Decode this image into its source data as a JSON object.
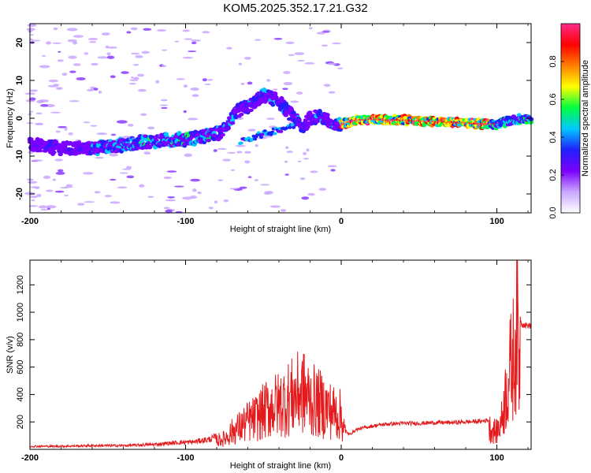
{
  "title": "KOM5.2025.352.17.21.G32",
  "chart_data": [
    {
      "type": "heatmap",
      "xlabel": "Height of straight line (km)",
      "ylabel": "Frequency (Hz)",
      "xlim": [
        -200,
        122
      ],
      "ylim": [
        -25,
        25
      ],
      "x_ticks": [
        -200,
        -100,
        0,
        100
      ],
      "y_ticks": [
        -20,
        -10,
        0,
        10,
        20
      ],
      "x_tick_labels": [
        "-200",
        "-100",
        "0",
        "100"
      ],
      "y_tick_labels": [
        "-20",
        "-10",
        "0",
        "10",
        "20"
      ],
      "colorbar": {
        "label": "Normalized spectral amplitude",
        "range": [
          0.0,
          1.0
        ],
        "ticks": [
          0.0,
          0.2,
          0.4,
          0.6,
          0.8
        ],
        "tick_labels": [
          "0.0",
          "0.2",
          "0.4",
          "0.6",
          "0.8"
        ],
        "colormap": [
          "#ffffff",
          "#c9a6ff",
          "#7b00ff",
          "#2020ff",
          "#00c8ff",
          "#00ff40",
          "#ffff00",
          "#ff7f00",
          "#ff0000",
          "#ff2a8a"
        ]
      },
      "ridge": {
        "x": [
          -200,
          -180,
          -160,
          -150,
          -140,
          -120,
          -100,
          -90,
          -85,
          -78,
          -72,
          -66,
          -60,
          -55,
          -50,
          -45,
          -40,
          -35,
          -30,
          -25,
          -20,
          -15,
          -10,
          -5,
          0,
          10,
          20,
          30,
          40,
          50,
          60,
          70,
          80,
          90,
          100,
          105,
          110,
          115,
          122
        ],
        "y": [
          -7,
          -8,
          -8,
          -7.5,
          -7,
          -6,
          -5.5,
          -5,
          -4.5,
          -4,
          -1,
          2,
          3,
          4.5,
          6,
          5.5,
          4.5,
          2,
          0,
          -2.5,
          0,
          0.5,
          0,
          -2.5,
          -1.5,
          -0.5,
          -0.3,
          -0.5,
          -0.5,
          -0.7,
          -0.9,
          -1,
          -1.2,
          -1.5,
          -1.5,
          -1,
          -0.5,
          -0.3,
          -0.2
        ]
      },
      "grid": false
    },
    {
      "type": "line",
      "xlabel": "Height of straight line (km)",
      "ylabel": "SNR (v/v)",
      "xlim": [
        -200,
        122
      ],
      "ylim": [
        0,
        1380
      ],
      "x_ticks": [
        -200,
        -100,
        0,
        100
      ],
      "y_ticks": [
        200,
        400,
        600,
        800,
        1000,
        1200
      ],
      "x_tick_labels": [
        "-200",
        "-100",
        "0",
        "100"
      ],
      "y_tick_labels": [
        "200",
        "400",
        "600",
        "800",
        "1000",
        "1200"
      ],
      "color": "#e41a1c",
      "series": [
        {
          "x": [
            -200,
            -180,
            -160,
            -140,
            -120,
            -105,
            -95,
            -85,
            -75,
            -70,
            -65,
            -60,
            -55,
            -50,
            -45,
            -40,
            -35,
            -30,
            -25,
            -20,
            -15,
            -10,
            -5,
            0,
            3,
            5,
            10,
            20,
            30,
            40,
            50,
            60,
            70,
            80,
            90,
            95,
            100,
            103,
            105,
            107,
            109,
            110,
            111,
            112,
            113,
            114,
            116,
            118,
            122
          ],
          "y": [
            25,
            25,
            30,
            30,
            40,
            55,
            60,
            80,
            120,
            200,
            250,
            310,
            350,
            420,
            480,
            500,
            560,
            600,
            650,
            560,
            520,
            470,
            420,
            380,
            140,
            110,
            150,
            175,
            190,
            195,
            195,
            200,
            200,
            205,
            210,
            220,
            180,
            300,
            500,
            700,
            850,
            900,
            1000,
            1200,
            1380,
            1000,
            920,
            910,
            905
          ]
        }
      ],
      "grid": false
    }
  ]
}
